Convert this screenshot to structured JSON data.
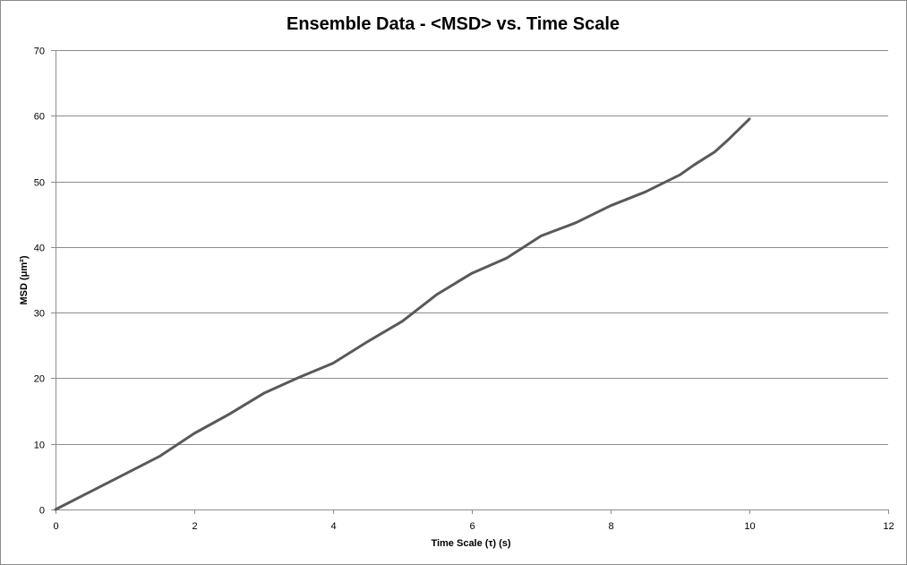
{
  "chart_data": {
    "type": "line",
    "title": "Ensemble Data - <MSD> vs. Time Scale",
    "xlabel": "Time Scale  (τ) (s)",
    "ylabel": "MSD (μm²)",
    "xlim": [
      0,
      12
    ],
    "ylim": [
      0,
      70
    ],
    "xticks": [
      0,
      2,
      4,
      6,
      8,
      10,
      12
    ],
    "yticks": [
      0,
      10,
      20,
      30,
      40,
      50,
      60,
      70
    ],
    "grid": true,
    "legend": "none",
    "colors": {
      "line": "#595959",
      "grid": "#8c8c8c",
      "axis": "#8c8c8c"
    },
    "series": [
      {
        "x": [
          0,
          0.5,
          1.0,
          1.5,
          2.0,
          2.5,
          3.0,
          3.5,
          4.0,
          4.5,
          5.0,
          5.5,
          6.0,
          6.5,
          7.0,
          7.5,
          8.0,
          8.5,
          9.0,
          9.2,
          9.5,
          9.7,
          10.0
        ],
        "y": [
          0,
          2.7,
          5.4,
          8.1,
          11.6,
          14.5,
          17.7,
          20.1,
          22.3,
          25.6,
          28.7,
          32.8,
          36.0,
          38.3,
          41.7,
          43.7,
          46.3,
          48.4,
          51.0,
          52.5,
          54.5,
          56.4,
          59.5
        ]
      }
    ]
  }
}
